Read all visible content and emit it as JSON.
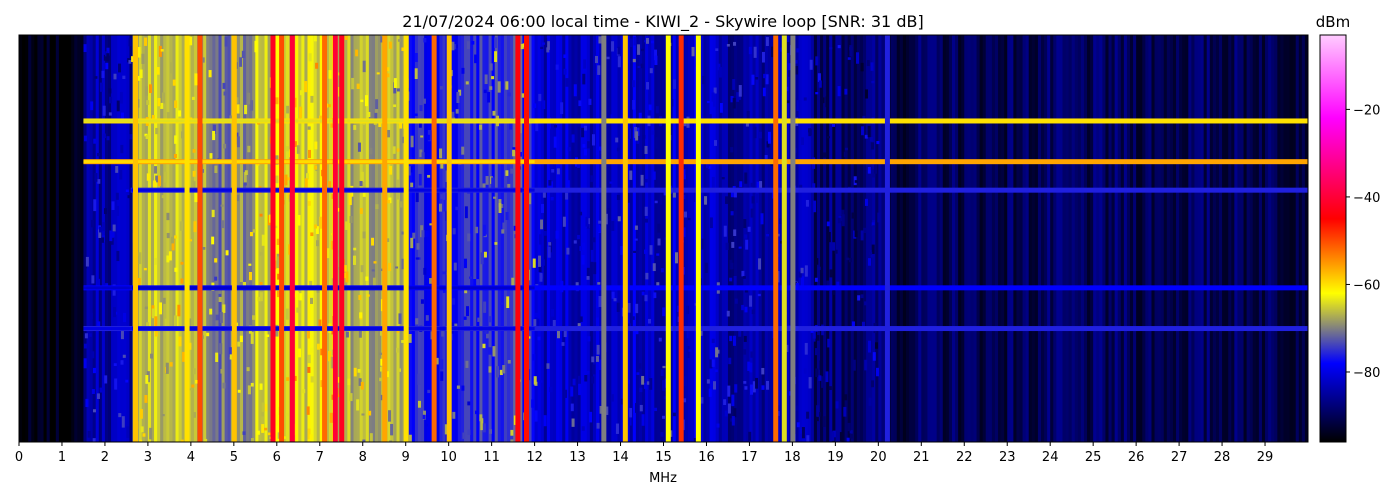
{
  "chart_data": {
    "type": "heatmap",
    "title": "21/07/2024 06:00 local time - KIWI_2 - Skywire loop [SNR: 31 dB]",
    "xlabel": "MHz",
    "ylabel": "",
    "xlim": [
      0,
      30
    ],
    "x_ticks": [
      "0",
      "1",
      "2",
      "3",
      "4",
      "5",
      "6",
      "7",
      "8",
      "9",
      "10",
      "11",
      "12",
      "13",
      "14",
      "15",
      "16",
      "17",
      "18",
      "19",
      "20",
      "21",
      "22",
      "23",
      "24",
      "25",
      "26",
      "27",
      "28",
      "29"
    ],
    "colorbar": {
      "label": "dBm",
      "range": [
        -96,
        -3
      ],
      "ticks": [
        "−80",
        "−60",
        "−40",
        "−20"
      ],
      "tick_values": [
        -80,
        -60,
        -40,
        -20
      ],
      "colormap": [
        "#000000",
        "#000066",
        "#0000ff",
        "#808080",
        "#ffff00",
        "#ff0000",
        "#ff00ff",
        "#ffccff"
      ],
      "colormap_stops": [
        -96,
        -89,
        -78,
        -70,
        -62,
        -45,
        -22,
        -3
      ]
    },
    "background_dbm": -92,
    "vertical_bands": [
      {
        "start": 0.0,
        "end": 1.5,
        "dbm": -96
      },
      {
        "start": 1.5,
        "end": 2.6,
        "dbm": -84
      },
      {
        "start": 2.6,
        "end": 4.3,
        "dbm": -66
      },
      {
        "start": 4.3,
        "end": 5.5,
        "dbm": -70
      },
      {
        "start": 5.5,
        "end": 7.6,
        "dbm": -64
      },
      {
        "start": 7.6,
        "end": 9.0,
        "dbm": -68
      },
      {
        "start": 9.0,
        "end": 10.5,
        "dbm": -77
      },
      {
        "start": 10.5,
        "end": 12.0,
        "dbm": -75
      },
      {
        "start": 12.0,
        "end": 16.3,
        "dbm": -82
      },
      {
        "start": 16.3,
        "end": 18.5,
        "dbm": -85
      },
      {
        "start": 18.5,
        "end": 20.2,
        "dbm": -88
      },
      {
        "start": 20.2,
        "end": 30.0,
        "dbm": -90
      }
    ],
    "strong_lines": [
      {
        "freq": 2.7,
        "dbm": -58
      },
      {
        "freq": 3.9,
        "dbm": -60
      },
      {
        "freq": 4.2,
        "dbm": -50
      },
      {
        "freq": 5.0,
        "dbm": -58
      },
      {
        "freq": 5.9,
        "dbm": -42
      },
      {
        "freq": 6.1,
        "dbm": -50
      },
      {
        "freq": 6.35,
        "dbm": -40
      },
      {
        "freq": 7.1,
        "dbm": -52
      },
      {
        "freq": 7.35,
        "dbm": -40
      },
      {
        "freq": 7.5,
        "dbm": -42
      },
      {
        "freq": 8.5,
        "dbm": -56
      },
      {
        "freq": 9.0,
        "dbm": -60
      },
      {
        "freq": 9.65,
        "dbm": -52
      },
      {
        "freq": 10.0,
        "dbm": -58
      },
      {
        "freq": 11.6,
        "dbm": -44
      },
      {
        "freq": 11.8,
        "dbm": -46
      },
      {
        "freq": 13.6,
        "dbm": -70
      },
      {
        "freq": 14.1,
        "dbm": -58
      },
      {
        "freq": 15.1,
        "dbm": -62
      },
      {
        "freq": 15.4,
        "dbm": -48
      },
      {
        "freq": 15.8,
        "dbm": -62
      },
      {
        "freq": 17.6,
        "dbm": -52
      },
      {
        "freq": 17.8,
        "dbm": -64
      },
      {
        "freq": 18.0,
        "dbm": -70
      },
      {
        "freq": 20.2,
        "dbm": -76
      }
    ],
    "horizontal_bands": [
      {
        "row": 0.21,
        "dbm": -64,
        "from": 1.5,
        "to": 30
      },
      {
        "row": 0.31,
        "dbm": -60,
        "from": 1.5,
        "to": 30
      },
      {
        "row": 0.38,
        "dbm": -80,
        "from": 2.6,
        "to": 30
      },
      {
        "row": 0.62,
        "dbm": -82,
        "from": 1.5,
        "to": 30
      },
      {
        "row": 0.72,
        "dbm": -80,
        "from": 1.5,
        "to": 30
      }
    ]
  }
}
